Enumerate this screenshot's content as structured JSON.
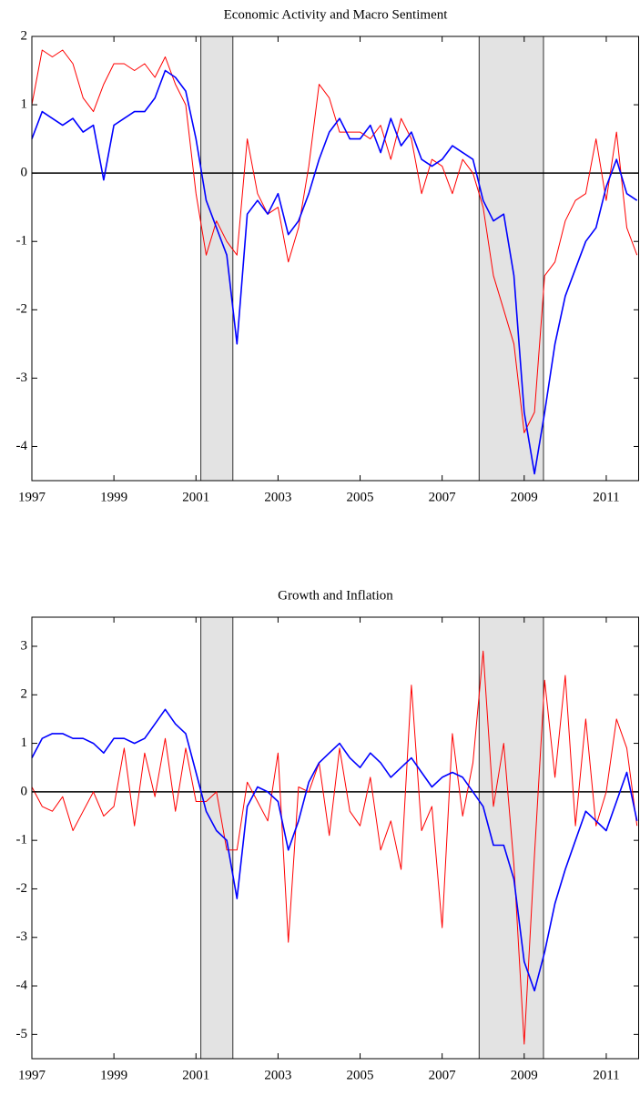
{
  "chart_data": [
    {
      "type": "line",
      "title": "Economic Activity and Macro Sentiment",
      "x": [
        1997,
        1997.25,
        1997.5,
        1997.75,
        1998,
        1998.25,
        1998.5,
        1998.75,
        1999,
        1999.25,
        1999.5,
        1999.75,
        2000,
        2000.25,
        2000.5,
        2000.75,
        2001,
        2001.25,
        2001.5,
        2001.75,
        2002,
        2002.25,
        2002.5,
        2002.75,
        2003,
        2003.25,
        2003.5,
        2003.75,
        2004,
        2004.25,
        2004.5,
        2004.75,
        2005,
        2005.25,
        2005.5,
        2005.75,
        2006,
        2006.25,
        2006.5,
        2006.75,
        2007,
        2007.25,
        2007.5,
        2007.75,
        2008,
        2008.25,
        2008.5,
        2008.75,
        2009,
        2009.25,
        2009.5,
        2009.75,
        2010,
        2010.25,
        2010.5,
        2010.75,
        2011,
        2011.25,
        2011.5,
        2011.75
      ],
      "series": [
        {
          "color": "#ff0000",
          "values": [
            1.0,
            1.8,
            1.7,
            1.8,
            1.6,
            1.1,
            0.9,
            1.3,
            1.6,
            1.6,
            1.5,
            1.6,
            1.4,
            1.7,
            1.3,
            1.0,
            -0.3,
            -1.2,
            -0.7,
            -1.0,
            -1.2,
            0.5,
            -0.3,
            -0.6,
            -0.5,
            -1.3,
            -0.8,
            0.1,
            1.3,
            1.1,
            0.6,
            0.6,
            0.6,
            0.5,
            0.7,
            0.2,
            0.8,
            0.5,
            -0.3,
            0.2,
            0.1,
            -0.3,
            0.2,
            0.0,
            -0.5,
            -1.5,
            -2.0,
            -2.5,
            -3.8,
            -3.5,
            -1.5,
            -1.3,
            -0.7,
            -0.4,
            -0.3,
            0.5,
            -0.4,
            0.6,
            -0.8,
            -1.2
          ]
        },
        {
          "color": "#0000ff",
          "values": [
            0.5,
            0.9,
            0.8,
            0.7,
            0.8,
            0.6,
            0.7,
            -0.1,
            0.7,
            0.8,
            0.9,
            0.9,
            1.1,
            1.5,
            1.4,
            1.2,
            0.5,
            -0.4,
            -0.8,
            -1.2,
            -2.5,
            -0.6,
            -0.4,
            -0.6,
            -0.3,
            -0.9,
            -0.7,
            -0.3,
            0.2,
            0.6,
            0.8,
            0.5,
            0.5,
            0.7,
            0.3,
            0.8,
            0.4,
            0.6,
            0.2,
            0.1,
            0.2,
            0.4,
            0.3,
            0.2,
            -0.4,
            -0.7,
            -0.6,
            -1.5,
            -3.5,
            -4.4,
            -3.5,
            -2.5,
            -1.8,
            -1.4,
            -1.0,
            -0.8,
            -0.2,
            0.2,
            -0.3,
            -0.4
          ]
        }
      ],
      "xlim": [
        1997,
        2011.8
      ],
      "ylim": [
        -4.5,
        2
      ],
      "xticks": [
        1997,
        1999,
        2001,
        2003,
        2005,
        2007,
        2009,
        2011
      ],
      "yticks": [
        -4,
        -3,
        -2,
        -1,
        0,
        1,
        2
      ],
      "shaded_regions": [
        [
          2001.12,
          2001.9
        ],
        [
          2007.9,
          2009.47
        ]
      ],
      "reference_line": 0
    },
    {
      "type": "line",
      "title": "Growth and Inflation",
      "x": [
        1997,
        1997.25,
        1997.5,
        1997.75,
        1998,
        1998.25,
        1998.5,
        1998.75,
        1999,
        1999.25,
        1999.5,
        1999.75,
        2000,
        2000.25,
        2000.5,
        2000.75,
        2001,
        2001.25,
        2001.5,
        2001.75,
        2002,
        2002.25,
        2002.5,
        2002.75,
        2003,
        2003.25,
        2003.5,
        2003.75,
        2004,
        2004.25,
        2004.5,
        2004.75,
        2005,
        2005.25,
        2005.5,
        2005.75,
        2006,
        2006.25,
        2006.5,
        2006.75,
        2007,
        2007.25,
        2007.5,
        2007.75,
        2008,
        2008.25,
        2008.5,
        2008.75,
        2009,
        2009.25,
        2009.5,
        2009.75,
        2010,
        2010.25,
        2010.5,
        2010.75,
        2011,
        2011.25,
        2011.5,
        2011.75
      ],
      "series": [
        {
          "color": "#ff0000",
          "values": [
            0.1,
            -0.3,
            -0.4,
            -0.1,
            -0.8,
            -0.4,
            0.0,
            -0.5,
            -0.3,
            0.9,
            -0.7,
            0.8,
            -0.1,
            1.1,
            -0.4,
            0.9,
            -0.2,
            -0.2,
            0.0,
            -1.2,
            -1.2,
            0.2,
            -0.2,
            -0.6,
            0.8,
            -3.1,
            0.1,
            0.0,
            0.6,
            -0.9,
            0.9,
            -0.4,
            -0.7,
            0.3,
            -1.2,
            -0.6,
            -1.6,
            2.2,
            -0.8,
            -0.3,
            -2.8,
            1.2,
            -0.5,
            0.6,
            2.9,
            -0.3,
            1.0,
            -1.5,
            -5.2,
            -1.3,
            2.3,
            0.3,
            2.4,
            -0.7,
            1.5,
            -0.7,
            0.0,
            1.5,
            0.9,
            -0.7
          ]
        },
        {
          "color": "#0000ff",
          "values": [
            0.7,
            1.1,
            1.2,
            1.2,
            1.1,
            1.1,
            1.0,
            0.8,
            1.1,
            1.1,
            1.0,
            1.1,
            1.4,
            1.7,
            1.4,
            1.2,
            0.4,
            -0.4,
            -0.8,
            -1.0,
            -2.2,
            -0.3,
            0.1,
            0.0,
            -0.2,
            -1.2,
            -0.6,
            0.2,
            0.6,
            0.8,
            1.0,
            0.7,
            0.5,
            0.8,
            0.6,
            0.3,
            0.5,
            0.7,
            0.4,
            0.1,
            0.3,
            0.4,
            0.3,
            0.0,
            -0.3,
            -1.1,
            -1.1,
            -1.8,
            -3.5,
            -4.1,
            -3.3,
            -2.3,
            -1.6,
            -1.0,
            -0.4,
            -0.6,
            -0.8,
            -0.2,
            0.4,
            -0.6
          ]
        }
      ],
      "xlim": [
        1997,
        2011.8
      ],
      "ylim": [
        -5.5,
        3.6
      ],
      "xticks": [
        1997,
        1999,
        2001,
        2003,
        2005,
        2007,
        2009,
        2011
      ],
      "yticks": [
        -5,
        -4,
        -3,
        -2,
        -1,
        0,
        1,
        2,
        3
      ],
      "shaded_regions": [
        [
          2001.12,
          2001.9
        ],
        [
          2007.9,
          2009.47
        ]
      ],
      "reference_line": 0
    }
  ]
}
